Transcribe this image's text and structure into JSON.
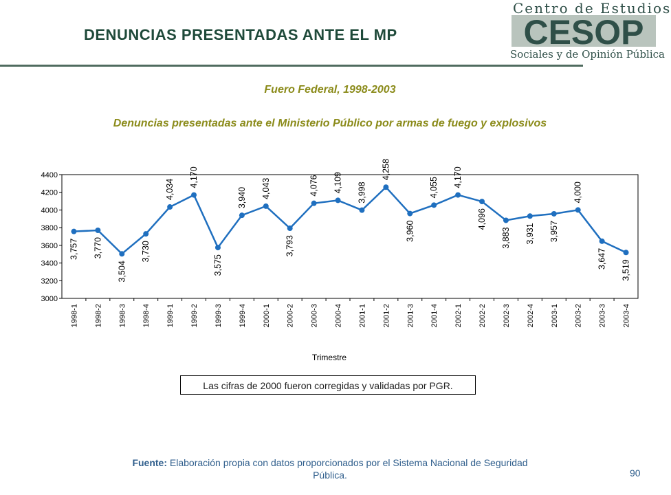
{
  "header": {
    "title": "DENUNCIAS PRESENTADAS ANTE EL MP",
    "logo_text_top": "Centro de Estudios",
    "logo_mark": "CESOP",
    "logo_text_bottom": "Sociales y de Opinión Pública"
  },
  "subtitles": {
    "line1": "Fuero Federal, 1998-2003",
    "line2": "Denuncias presentadas ante el Ministerio Público por armas de fuego y explosivos"
  },
  "note": "Las cifras de 2000 fueron corregidas y validadas por PGR.",
  "source": {
    "label": "Fuente:",
    "text": " Elaboración propia con datos proporcionados por el Sistema Nacional de Seguridad Pública."
  },
  "page_number": "90",
  "colors": {
    "line": "#1f6fbf",
    "title": "#1f4a3a",
    "subtitle": "#8b8b1a",
    "source": "#2f5e8c"
  },
  "chart_data": {
    "type": "line",
    "title": "",
    "xlabel": "Trimestre",
    "ylabel": "",
    "ylim": [
      3000,
      4400
    ],
    "yticks": [
      3000,
      3200,
      3400,
      3600,
      3800,
      4000,
      4200,
      4400
    ],
    "grid": false,
    "categories": [
      "1998-1",
      "1998-2",
      "1998-3",
      "1998-4",
      "1999-1",
      "1999-2",
      "1999-3",
      "1999-4",
      "2000-1",
      "2000-2",
      "2000-3",
      "2000-4",
      "2001-1",
      "2001-2",
      "2001-3",
      "2001-4",
      "2002-1",
      "2002-2",
      "2002-3",
      "2002-4",
      "2003-1",
      "2003-2",
      "2003-3",
      "2003-4"
    ],
    "values": [
      3757,
      3770,
      3504,
      3730,
      4034,
      4170,
      3575,
      3940,
      4043,
      3793,
      4076,
      4109,
      3998,
      4258,
      3960,
      4055,
      4170,
      4096,
      3883,
      3931,
      3957,
      4000,
      3647,
      3519
    ],
    "data_labels": [
      "3,757",
      "3,770",
      "3,504",
      "3,730",
      "4,034",
      "4,170",
      "3,575",
      "3,940",
      "4,043",
      "3,793",
      "4,076",
      "4,109",
      "3,998",
      "4,258",
      "3,960",
      "4,055",
      "4,170",
      "4,096",
      "3,883",
      "3,931",
      "3,957",
      "4,000",
      "3,647",
      "3,519"
    ],
    "label_position": [
      "below",
      "below",
      "below",
      "below",
      "above",
      "above",
      "below",
      "above",
      "above",
      "below",
      "above",
      "above",
      "above",
      "above",
      "below",
      "above",
      "above",
      "below",
      "below",
      "below",
      "below",
      "above",
      "below",
      "below"
    ]
  }
}
